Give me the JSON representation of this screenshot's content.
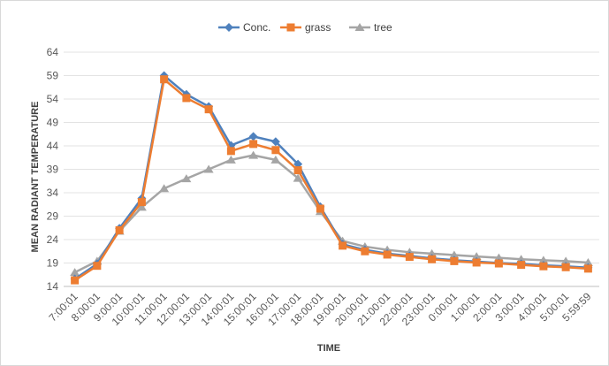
{
  "chart_data": {
    "type": "line",
    "title": "",
    "xlabel": "TIME",
    "ylabel": "MEAN RADIANT TEMPERATURE",
    "ylim": [
      14,
      64
    ],
    "yticks": [
      14,
      19,
      24,
      29,
      34,
      39,
      44,
      49,
      54,
      59,
      64
    ],
    "grid": "horizontal",
    "legend_position": "top",
    "categories": [
      "7:00:01",
      "8:00:01",
      "9:00:01",
      "10:00:01",
      "11:00:01",
      "12:00:01",
      "13:00:01",
      "14:00:01",
      "15:00:01",
      "16:00:01",
      "17:00:01",
      "18:00:01",
      "19:00:01",
      "20:00:01",
      "21:00:01",
      "22:00:01",
      "23:00:01",
      "0:00:01",
      "1:00:01",
      "2:00:01",
      "3:00:01",
      "4:00:01",
      "5:00:01",
      "5:59:59"
    ],
    "series": [
      {
        "name": "Conc.",
        "color": "#4f81bd",
        "marker": "diamond",
        "values": [
          15.6,
          18.8,
          26.4,
          32.8,
          59.0,
          55.0,
          52.4,
          44.1,
          46.0,
          44.9,
          40.1,
          31.0,
          23.0,
          21.8,
          21.0,
          20.5,
          20.0,
          19.6,
          19.3,
          19.0,
          18.8,
          18.5,
          18.3,
          18.0
        ]
      },
      {
        "name": "grass",
        "color": "#ed7d31",
        "marker": "square",
        "values": [
          15.3,
          18.4,
          26.0,
          32.0,
          58.2,
          54.2,
          51.8,
          42.9,
          44.4,
          43.1,
          38.8,
          30.6,
          22.7,
          21.5,
          20.8,
          20.3,
          19.8,
          19.4,
          19.1,
          18.9,
          18.6,
          18.3,
          18.1,
          17.8
        ]
      },
      {
        "name": "tree",
        "color": "#a5a5a5",
        "marker": "triangle",
        "values": [
          17.0,
          19.4,
          25.8,
          30.9,
          34.9,
          37.0,
          39.0,
          41.0,
          42.0,
          41.0,
          37.1,
          30.0,
          23.7,
          22.5,
          21.8,
          21.3,
          21.0,
          20.7,
          20.4,
          20.1,
          19.8,
          19.6,
          19.4,
          19.1
        ]
      }
    ]
  }
}
